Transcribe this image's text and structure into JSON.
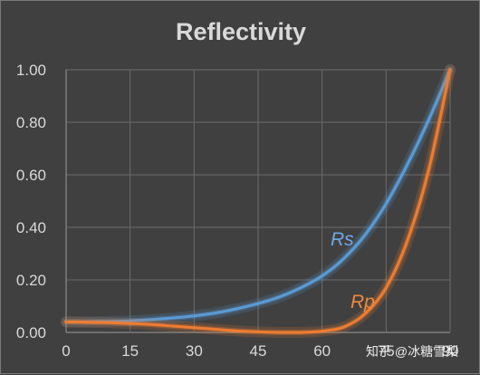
{
  "chart_data": {
    "type": "line",
    "title": "Reflectivity",
    "xlim": [
      0,
      90
    ],
    "ylim": [
      0,
      1
    ],
    "x_ticks": [
      "0",
      "15",
      "30",
      "45",
      "60",
      "75",
      "90"
    ],
    "y_ticks": [
      "0.00",
      "0.20",
      "0.40",
      "0.60",
      "0.80",
      "1.00"
    ],
    "grid": true,
    "series": [
      {
        "name": "Rs",
        "color": "#5b9bd5",
        "x": [
          0,
          5,
          10,
          15,
          20,
          25,
          30,
          35,
          40,
          45,
          50,
          55,
          60,
          65,
          70,
          75,
          80,
          85,
          90
        ],
        "y": [
          0.04,
          0.04,
          0.042,
          0.044,
          0.049,
          0.055,
          0.063,
          0.074,
          0.09,
          0.11,
          0.135,
          0.17,
          0.215,
          0.28,
          0.37,
          0.49,
          0.64,
          0.81,
          1.0
        ]
      },
      {
        "name": "Rp",
        "color": "#ed7d31",
        "x": [
          0,
          5,
          10,
          15,
          20,
          25,
          30,
          35,
          40,
          45,
          50,
          52,
          55,
          58,
          60,
          65,
          70,
          75,
          80,
          85,
          90
        ],
        "y": [
          0.04,
          0.039,
          0.037,
          0.034,
          0.03,
          0.024,
          0.018,
          0.012,
          0.006,
          0.002,
          0.0,
          0.0,
          0.0,
          0.002,
          0.005,
          0.02,
          0.07,
          0.17,
          0.35,
          0.62,
          1.0
        ]
      }
    ]
  },
  "watermark": "知乎 @冰糖雪梨"
}
